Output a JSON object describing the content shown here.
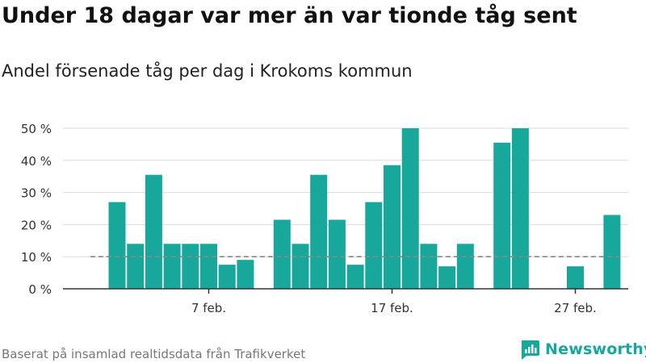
{
  "header": {
    "title": "Under 18 dagar var mer än var tionde tåg sent",
    "subtitle": "Andel försenade tåg per dag i Krokoms kommun"
  },
  "footer": {
    "source": "Baserat på insamlad realtidsdata från Trafikverket",
    "brand": "Newsworthy",
    "brand_icon": "newsworthy-logo-icon"
  },
  "colors": {
    "bar": "#17a89b",
    "reference_line": "#888888",
    "grid": "#d9d9d9",
    "axis": "#333333",
    "brand": "#16a89c"
  },
  "chart_data": {
    "type": "bar",
    "title": "Under 18 dagar var mer än var tionde tåg sent",
    "subtitle": "Andel försenade tåg per dag i Krokoms kommun",
    "xlabel": "",
    "ylabel": "",
    "ylim": [
      0,
      50
    ],
    "yticks": [
      0,
      10,
      20,
      30,
      40,
      50
    ],
    "ytick_labels": [
      "0 %",
      "10 %",
      "20 %",
      "30 %",
      "40 %",
      "50 %"
    ],
    "xtick_labels": [
      {
        "label": "7 feb.",
        "day": 7
      },
      {
        "label": "17 feb.",
        "day": 17
      },
      {
        "label": "27 feb.",
        "day": 27
      }
    ],
    "grid": true,
    "reference_line": {
      "value": 10,
      "style": "dashed",
      "from_day": 1,
      "to_day": 29
    },
    "x": [
      2,
      3,
      4,
      5,
      6,
      7,
      8,
      9,
      10,
      11,
      12,
      13,
      14,
      15,
      16,
      17,
      18,
      19,
      20,
      21,
      22,
      23,
      24,
      25,
      26,
      27,
      28,
      29
    ],
    "values": [
      27,
      14,
      35.5,
      14,
      14,
      14,
      7.5,
      9,
      null,
      21.5,
      14,
      35.5,
      21.5,
      7.5,
      27,
      38.5,
      50,
      14,
      7,
      14,
      null,
      45.5,
      50,
      null,
      null,
      7,
      null,
      23
    ]
  }
}
